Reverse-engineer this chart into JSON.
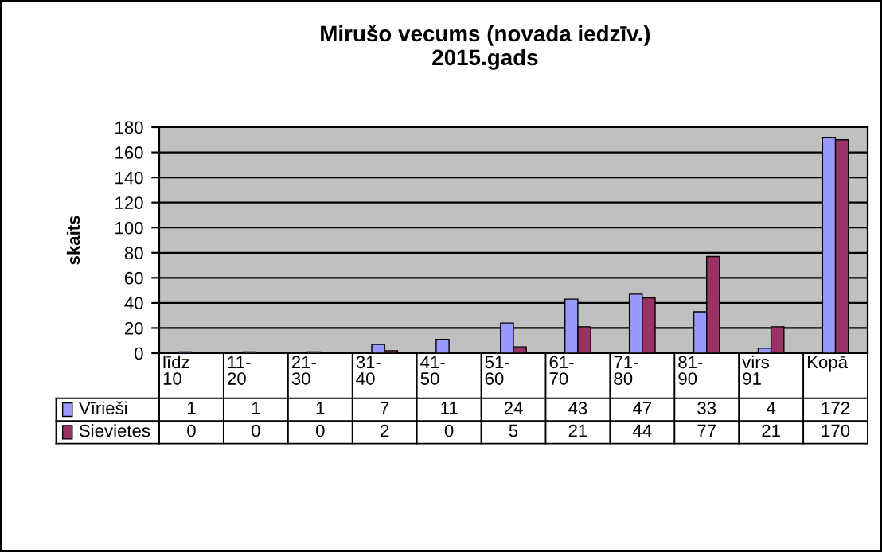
{
  "chart_data": {
    "type": "bar",
    "title": "Mirušo vecums (novada iedzīv.)\n2015.gads",
    "ylabel": "skaits",
    "categories": [
      "līdz 10",
      "11-20",
      "21-30",
      "31-40",
      "41-50",
      "51-60",
      "61-70",
      "71-80",
      "81-90",
      "virs 91",
      "Kopā"
    ],
    "series": [
      {
        "name": "Vīrieši",
        "color": "#9999ff",
        "values": [
          1,
          1,
          1,
          7,
          11,
          24,
          43,
          47,
          33,
          4,
          172
        ]
      },
      {
        "name": "Sievietes",
        "color": "#993366",
        "values": [
          0,
          0,
          0,
          2,
          0,
          5,
          21,
          44,
          77,
          21,
          170
        ]
      }
    ],
    "ylim": [
      0,
      180
    ],
    "yticks": [
      0,
      20,
      40,
      60,
      80,
      100,
      120,
      140,
      160,
      180
    ],
    "grid": "y",
    "data_labels": true,
    "legend": "bottom left"
  }
}
